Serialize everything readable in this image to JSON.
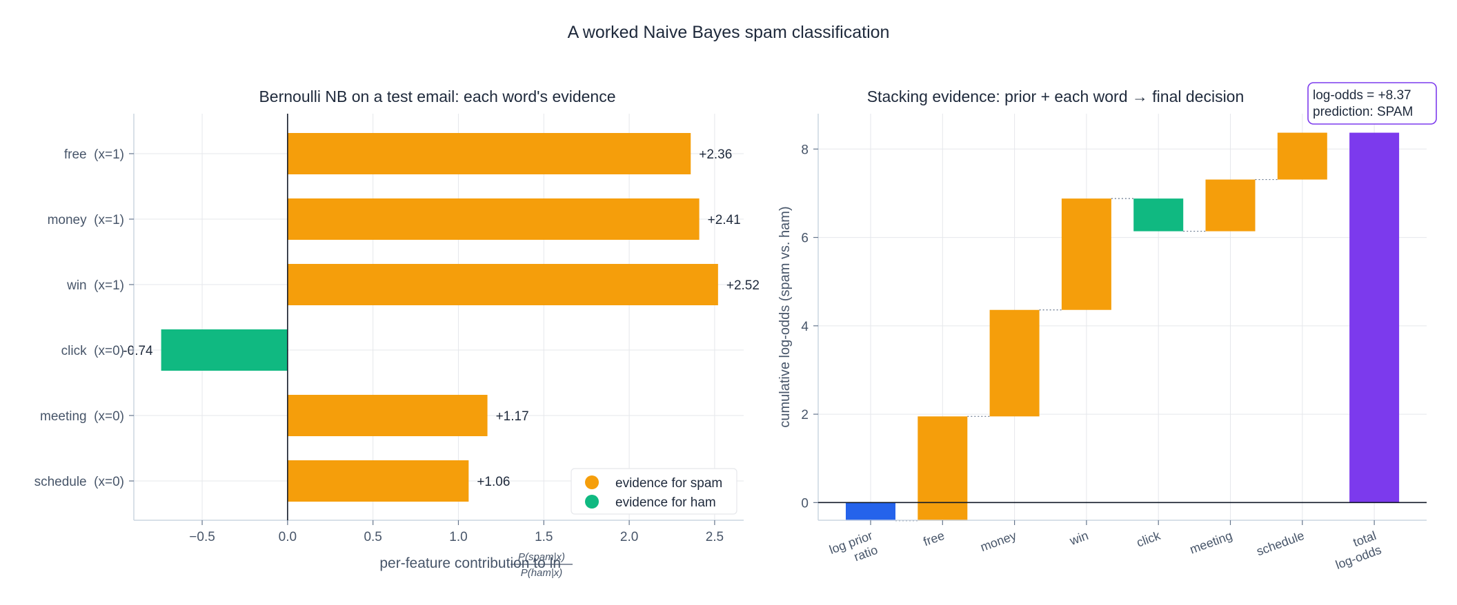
{
  "figure": {
    "title": "A worked Naive Bayes spam classification"
  },
  "colors": {
    "spam": "#f59e0b",
    "ham": "#10b981",
    "prior": "#2563eb",
    "total": "#7c3aed",
    "text": "#1e293b",
    "axis_text": "#475569",
    "grid": "#e5e7eb"
  },
  "chart_data": [
    {
      "type": "bar",
      "orientation": "horizontal",
      "title": "Bernoulli NB on a test email: each word's evidence",
      "xlabel": "per-feature contribution to ln",
      "xlabel_fraction": {
        "numerator": "P(spam|x)",
        "denominator": "P(ham|x)"
      },
      "categories": [
        "free  (x=1)",
        "money  (x=1)",
        "win  (x=1)",
        "click  (x=0)",
        "meeting  (x=0)",
        "schedule  (x=0)"
      ],
      "values": [
        2.36,
        2.41,
        2.52,
        -0.74,
        1.17,
        1.06
      ],
      "value_labels": [
        "+2.36",
        "+2.41",
        "+2.52",
        "-0.74",
        "+1.17",
        "+1.06"
      ],
      "xlim": [
        -0.9,
        2.67
      ],
      "xticks": [
        -0.5,
        0.0,
        0.5,
        1.0,
        1.5,
        2.0,
        2.5
      ],
      "xtick_labels": [
        "−0.5",
        "0.0",
        "0.5",
        "1.0",
        "1.5",
        "2.0",
        "2.5"
      ],
      "grid": true,
      "legend": {
        "placement": "bottom-right",
        "entries": [
          {
            "label": "evidence for spam",
            "color": "#f59e0b"
          },
          {
            "label": "evidence for ham",
            "color": "#10b981"
          }
        ]
      }
    },
    {
      "type": "waterfall",
      "title": "Stacking evidence: prior + each word → final decision",
      "ylabel": "cumulative log-odds (spam vs. ham)",
      "categories": [
        [
          "log prior",
          "ratio"
        ],
        [
          "free"
        ],
        [
          "money"
        ],
        [
          "win"
        ],
        [
          "click"
        ],
        [
          "meeting"
        ],
        [
          "schedule"
        ],
        [
          "total",
          "log-odds"
        ]
      ],
      "steps": [
        -0.41,
        2.36,
        2.41,
        2.52,
        -0.74,
        1.17,
        1.06
      ],
      "kinds": [
        "prior",
        "spam",
        "spam",
        "spam",
        "ham",
        "spam",
        "spam"
      ],
      "total": 8.37,
      "ylim": [
        -0.4,
        8.8
      ],
      "yticks": [
        0,
        2,
        4,
        6,
        8
      ],
      "grid": true,
      "annotation": [
        "log-odds = +8.37",
        "prediction: SPAM"
      ]
    }
  ]
}
